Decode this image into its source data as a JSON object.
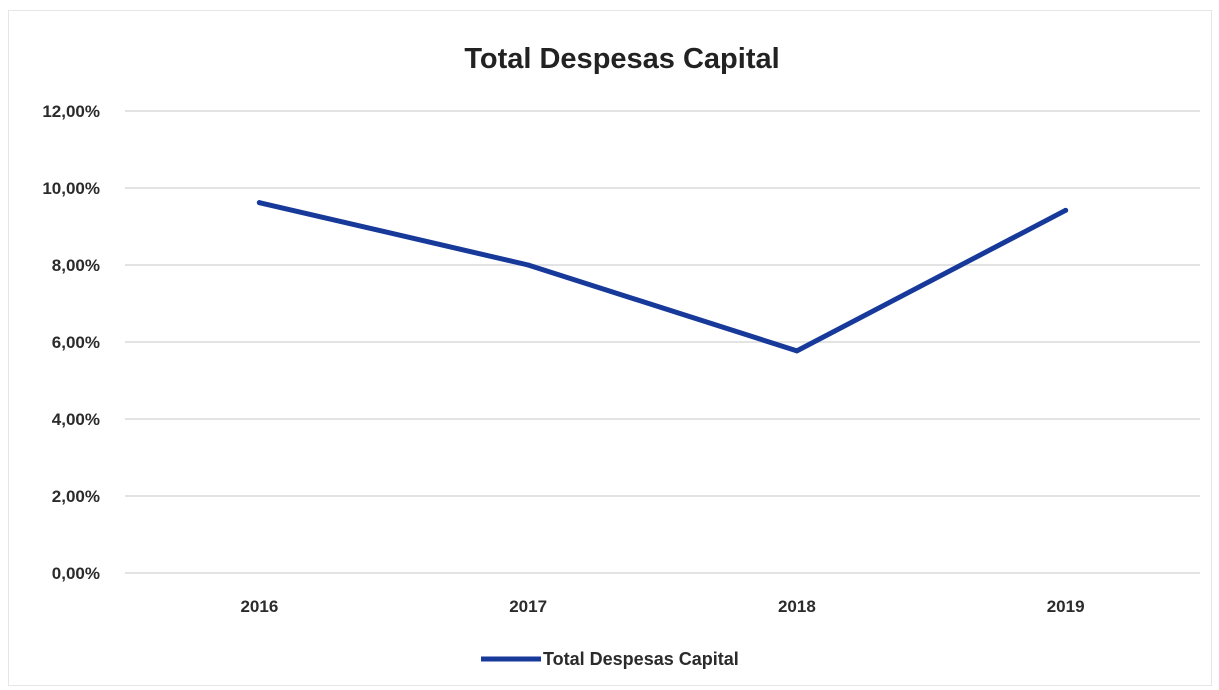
{
  "chart_data": {
    "type": "line",
    "title": "Total Despesas Capital",
    "categories": [
      "2016",
      "2017",
      "2018",
      "2019"
    ],
    "series": [
      {
        "name": "Total Despesas Capital",
        "values": [
          9.62,
          8.0,
          5.77,
          9.42
        ],
        "color": "#17399a"
      }
    ],
    "ylim": [
      0,
      12
    ],
    "y_ticks": [
      {
        "value": 0,
        "label": "0,00%"
      },
      {
        "value": 2,
        "label": "2,00%"
      },
      {
        "value": 4,
        "label": "4,00%"
      },
      {
        "value": 6,
        "label": "6,00%"
      },
      {
        "value": 8,
        "label": "8,00%"
      },
      {
        "value": 10,
        "label": "10,00%"
      },
      {
        "value": 12,
        "label": "12,00%"
      }
    ],
    "grid": true,
    "legend_position": "bottom-center",
    "colors": {
      "gridline": "#e3e3e3",
      "text": "#2b2b2b"
    }
  }
}
